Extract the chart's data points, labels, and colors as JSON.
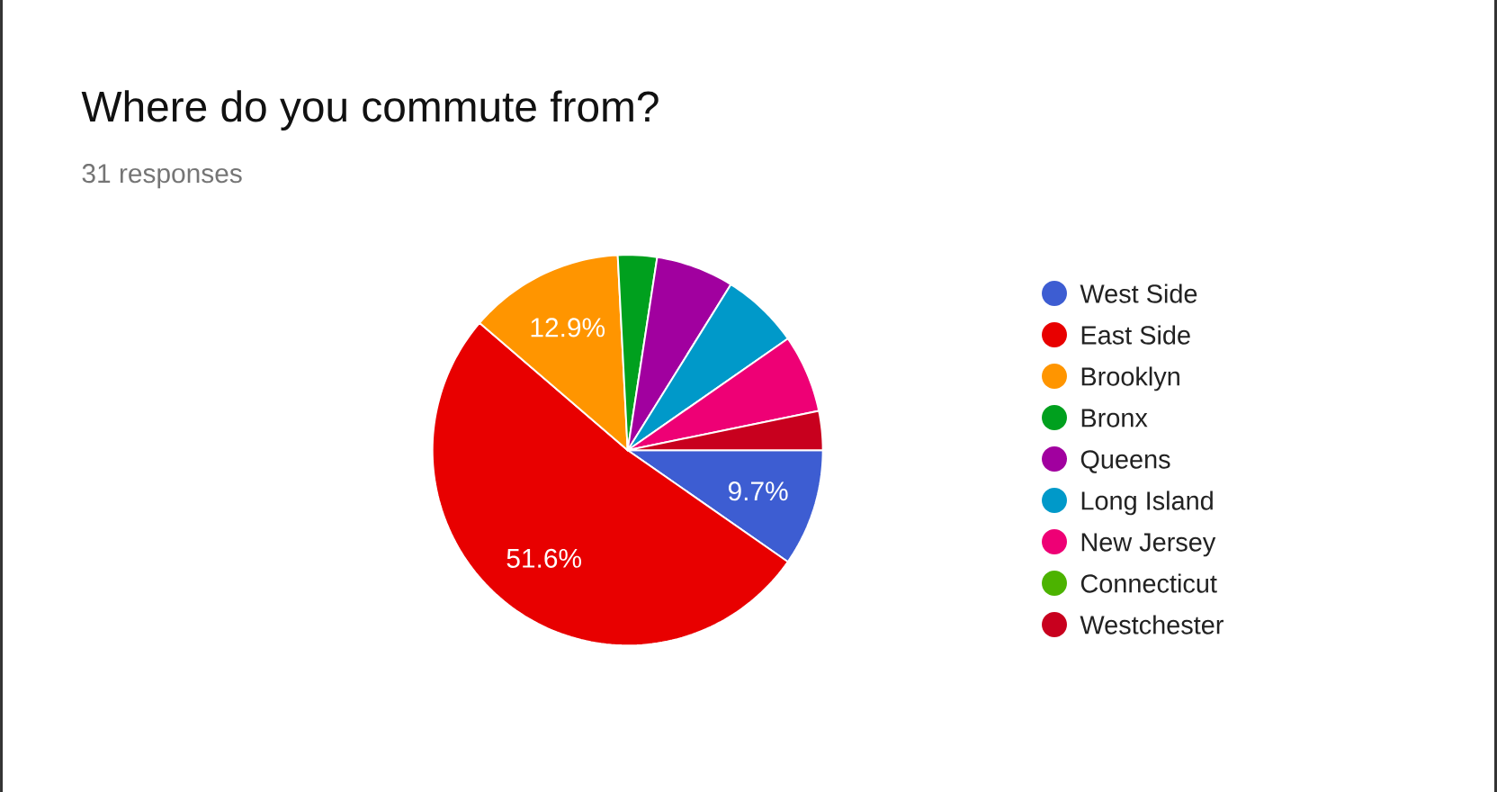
{
  "chart_data": {
    "type": "pie",
    "title": "Where do you commute from?",
    "subtitle": "31 responses",
    "categories": [
      "West Side",
      "East Side",
      "Brooklyn",
      "Bronx",
      "Queens",
      "Long Island",
      "New Jersey",
      "Connecticut",
      "Westchester"
    ],
    "values": [
      9.68,
      51.61,
      12.9,
      3.23,
      6.45,
      6.45,
      6.45,
      0,
      3.23
    ],
    "value_labels": [
      "9.7%",
      "51.6%",
      "12.9%",
      null,
      null,
      null,
      null,
      null,
      null
    ],
    "colors": [
      "#3d5dd2",
      "#e80000",
      "#ff9500",
      "#00a01e",
      "#a1009f",
      "#0099c9",
      "#ee0075",
      "#4cb300",
      "#c8001e"
    ],
    "legend": "right"
  }
}
